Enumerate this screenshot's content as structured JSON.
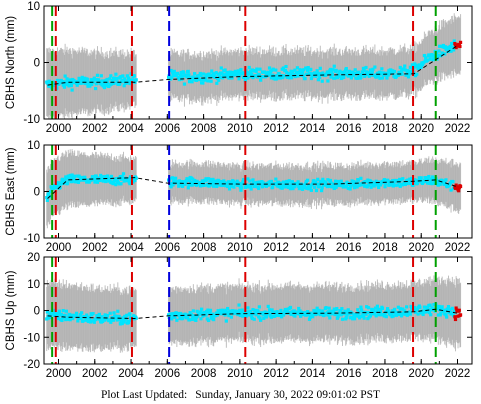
{
  "chart_data": [
    {
      "type": "scatter",
      "ylabel": "CBHS North (mm)",
      "ylim": [
        -10,
        10
      ],
      "yticks": [
        -10,
        0,
        10
      ],
      "xlim": [
        1999.2,
        2022.8
      ],
      "xticks": [
        2000,
        2002,
        2004,
        2006,
        2008,
        2010,
        2012,
        2014,
        2016,
        2018,
        2020,
        2022
      ],
      "xtick_labels": [
        "2000",
        "2002",
        "2004",
        "2006",
        "2008",
        "2010",
        "2012",
        "2014",
        "2016",
        "2018",
        "2020",
        "2022"
      ],
      "series": [
        {
          "color": "#00e5ff",
          "role": "daily positions",
          "x": [
            1999.4,
            2000.6,
            2002.0,
            2004.0,
            2006.0,
            2008.0,
            2010.0,
            2012.0,
            2014.0,
            2016.0,
            2018.0,
            2019.6,
            2020.5,
            2021.5,
            2022.0
          ],
          "y": [
            -4,
            -3.5,
            -3.5,
            -3,
            -2.5,
            -2.5,
            -2,
            -2,
            -2,
            -2,
            -2,
            -1.5,
            1,
            2.5,
            3
          ]
        },
        {
          "color": "#aaaaaa",
          "role": "error bars",
          "x": [
            1999.4,
            2006.0,
            2019.6,
            2022.0
          ],
          "y": [
            6,
            4,
            4,
            5
          ]
        },
        {
          "color": "#000000",
          "role": "model fit (dashed)",
          "x": [
            1999.4,
            2000.5,
            2004.2,
            2006.0,
            2010.0,
            2015.0,
            2019.6,
            2020.8,
            2022.0
          ],
          "y": [
            -4,
            -3.5,
            -3.5,
            -3,
            -2.5,
            -2.2,
            -2,
            0.5,
            3
          ]
        }
      ]
    },
    {
      "type": "scatter",
      "ylabel": "CBHS East (mm)",
      "ylim": [
        -10,
        10
      ],
      "yticks": [
        -10,
        0,
        10
      ],
      "xlim": [
        1999.2,
        2022.8
      ],
      "xticks": [
        2000,
        2002,
        2004,
        2006,
        2008,
        2010,
        2012,
        2014,
        2016,
        2018,
        2020,
        2022
      ],
      "xtick_labels": [
        "2000",
        "2002",
        "2004",
        "2006",
        "2008",
        "2010",
        "2012",
        "2014",
        "2016",
        "2018",
        "2020",
        "2022"
      ],
      "series": [
        {
          "color": "#00e5ff",
          "role": "daily positions",
          "x": [
            1999.4,
            1999.8,
            2000.5,
            2002.0,
            2004.0,
            2006.0,
            2008.0,
            2010.0,
            2012.0,
            2014.0,
            2016.0,
            2018.0,
            2019.6,
            2020.5,
            2021.5,
            2022.0
          ],
          "y": [
            -1.5,
            1,
            2.5,
            2.5,
            2.5,
            2,
            2,
            1.5,
            1.5,
            1.5,
            1.5,
            2,
            2,
            2.5,
            1.5,
            1
          ]
        },
        {
          "color": "#aaaaaa",
          "role": "error bars",
          "x": [
            1999.4,
            2006.0,
            2019.6,
            2022.0
          ],
          "y": [
            6,
            4,
            4,
            5
          ]
        },
        {
          "color": "#000000",
          "role": "model fit (dashed)",
          "x": [
            1999.4,
            2000.5,
            2004.2,
            2006.0,
            2010.0,
            2015.0,
            2019.6,
            2020.8,
            2022.0
          ],
          "y": [
            -1.5,
            2.5,
            3,
            1.8,
            1.6,
            1.6,
            2.2,
            2.5,
            1
          ]
        }
      ]
    },
    {
      "type": "scatter",
      "ylabel": "CBHS Up (mm)",
      "ylim": [
        -20,
        20
      ],
      "yticks": [
        -20,
        -10,
        0,
        10,
        20
      ],
      "xlim": [
        1999.2,
        2022.8
      ],
      "xticks": [
        2000,
        2002,
        2004,
        2006,
        2008,
        2010,
        2012,
        2014,
        2016,
        2018,
        2020,
        2022
      ],
      "xtick_labels": [
        "2000",
        "2002",
        "2004",
        "2006",
        "2008",
        "2010",
        "2012",
        "2014",
        "2016",
        "2018",
        "2020",
        "2022"
      ],
      "series": [
        {
          "color": "#00e5ff",
          "role": "daily positions",
          "x": [
            1999.4,
            2000.5,
            2002.0,
            2004.0,
            2006.0,
            2008.0,
            2010.0,
            2012.0,
            2014.0,
            2016.0,
            2018.0,
            2019.6,
            2020.5,
            2021.5,
            2022.0
          ],
          "y": [
            -2,
            -2,
            -3,
            -3,
            -2,
            -1.5,
            -1,
            -1,
            -1,
            -1,
            -0.5,
            0,
            0.5,
            0,
            -1
          ]
        },
        {
          "color": "#aaaaaa",
          "role": "error bars",
          "x": [
            1999.4,
            2006.0,
            2019.6,
            2022.0
          ],
          "y": [
            12,
            10,
            10,
            12
          ]
        },
        {
          "color": "#000000",
          "role": "model fit (dashed)",
          "x": [
            1999.4,
            2000.5,
            2004.2,
            2006.0,
            2010.0,
            2015.0,
            2019.6,
            2020.8,
            2022.0
          ],
          "y": [
            -2,
            -2.5,
            -3,
            -2,
            -1.2,
            -1,
            -0.5,
            0.5,
            -1
          ]
        }
      ]
    }
  ],
  "vertical_markers": [
    {
      "year": 1999.65,
      "color": "#00a000"
    },
    {
      "year": 1999.85,
      "color": "#dd0000"
    },
    {
      "year": 2004.05,
      "color": "#dd0000"
    },
    {
      "year": 2006.1,
      "color": "#0000dd"
    },
    {
      "year": 2010.3,
      "color": "#dd0000"
    },
    {
      "year": 2019.55,
      "color": "#dd0000"
    },
    {
      "year": 2020.8,
      "color": "#00a000"
    }
  ],
  "footer": {
    "label": "Plot Last Updated:",
    "value": "Sunday, January 30, 2022 09:01:02 PST"
  }
}
